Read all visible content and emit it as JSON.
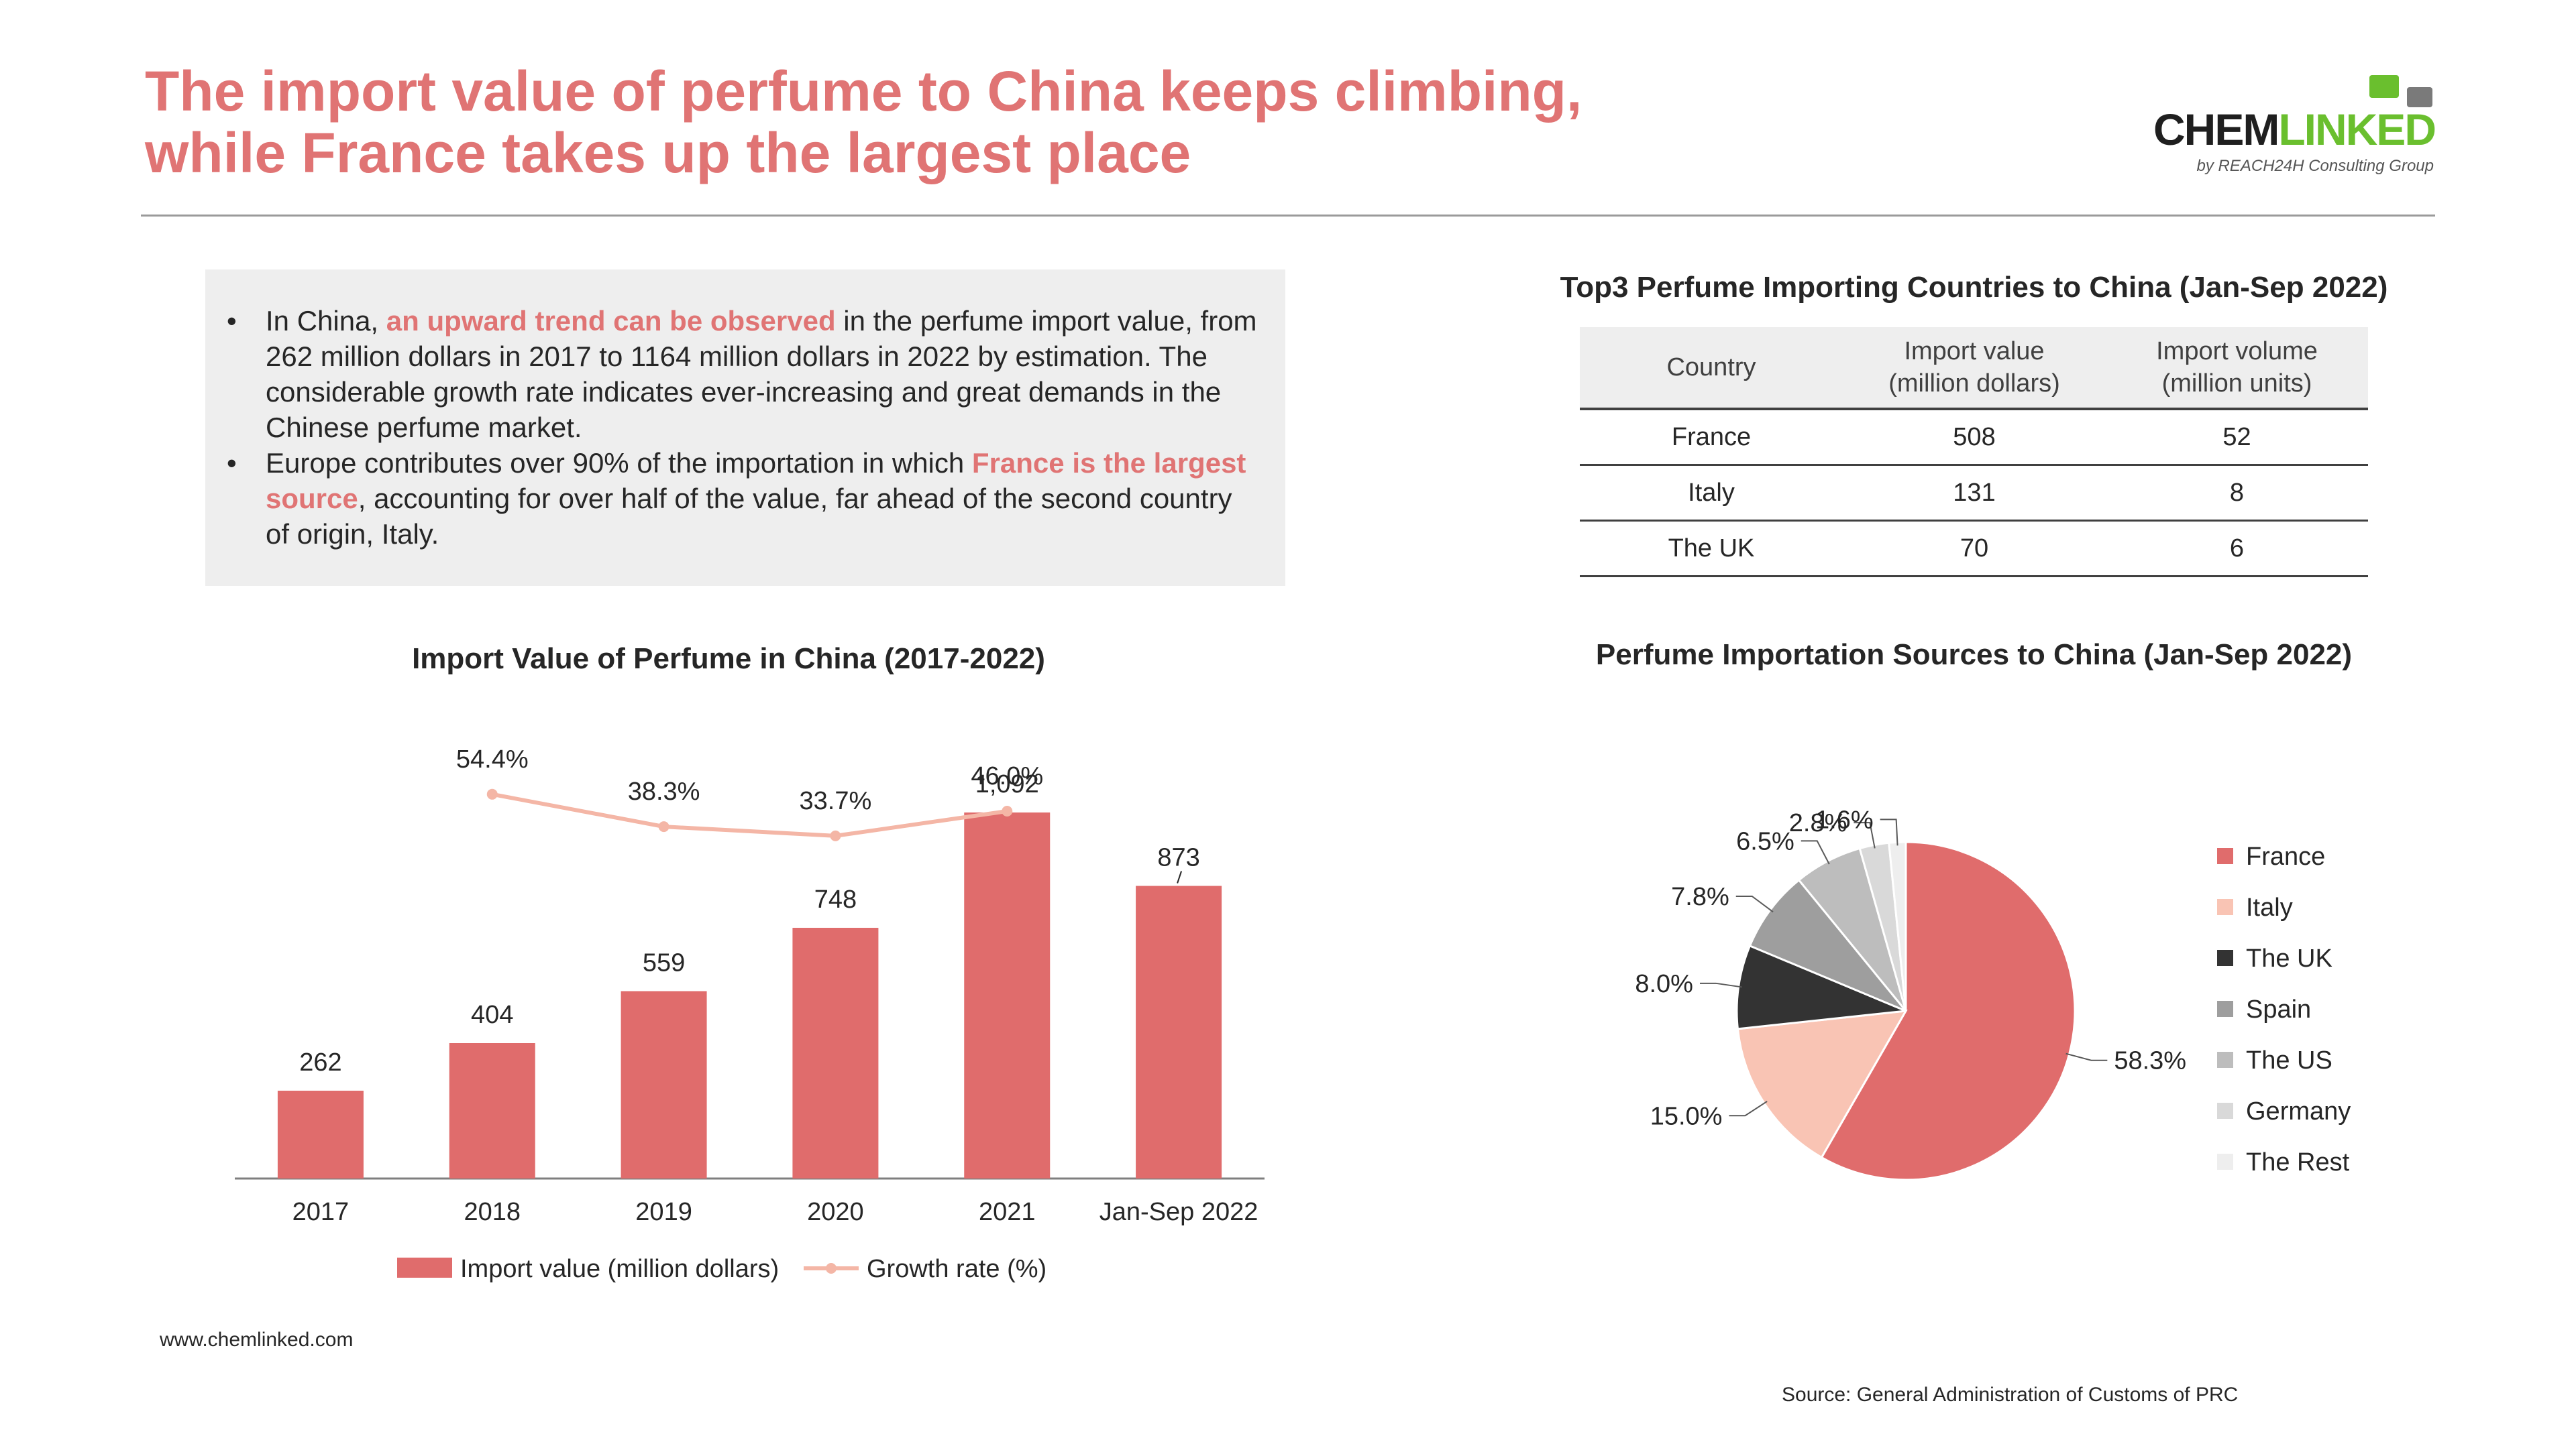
{
  "header": {
    "title_line1": "The import value of perfume to China keeps climbing,",
    "title_line2": "while France takes up the largest place"
  },
  "logo": {
    "main_dark": "CHEM",
    "main_green": "LINKED",
    "sub": "by REACH24H Consulting Group"
  },
  "summary": {
    "bullet1": {
      "pre": "In China, ",
      "highlight": "an upward trend can be observed",
      "post": " in the perfume import value, from 262 million dollars in 2017 to 1164 million dollars in 2022 by estimation. The considerable growth rate indicates ever-increasing and great demands in the Chinese perfume market."
    },
    "bullet2": {
      "pre": "Europe contributes over 90% of the importation in which ",
      "highlight": "France is the largest source",
      "post": ", accounting for over half of the value, far ahead of the second country of origin, Italy."
    },
    "bullet_marker": "•"
  },
  "table": {
    "title": "Top3 Perfume Importing Countries to China (Jan-Sep 2022)",
    "headers": {
      "country": "Country",
      "value_l1": "Import value",
      "value_l2": "(million dollars)",
      "volume_l1": "Import volume",
      "volume_l2": "(million units)"
    },
    "rows": [
      {
        "country": "France",
        "value": "508",
        "volume": "52"
      },
      {
        "country": "Italy",
        "value": "131",
        "volume": "8"
      },
      {
        "country": "The UK",
        "value": "70",
        "volume": "6"
      }
    ]
  },
  "chart_data": [
    {
      "type": "bar",
      "title": "Import Value of Perfume in China (2017-2022)",
      "categories": [
        "2017",
        "2018",
        "2019",
        "2020",
        "2021",
        "Jan-Sep 2022"
      ],
      "series": [
        {
          "name": "Import value (million dollars)",
          "values": [
            262,
            404,
            559,
            748,
            1092,
            873
          ],
          "labels": [
            "262",
            "404",
            "559",
            "748",
            "1,092",
            "873"
          ],
          "color": "#e06c6c"
        },
        {
          "name": "Growth rate (%)",
          "type": "line",
          "values": [
            null,
            54.4,
            38.3,
            33.7,
            46.0,
            null
          ],
          "labels": [
            "",
            "54.4%",
            "38.3%",
            "33.7%",
            "46.0%",
            ""
          ],
          "color": "#f4b6a6"
        }
      ],
      "legend": "bottom"
    },
    {
      "type": "pie",
      "title": "Perfume Importation Sources to China (Jan-Sep 2022)",
      "slices": [
        {
          "label": "France",
          "value": 58.3,
          "text": "58.3%",
          "color": "#e06c6c"
        },
        {
          "label": "Italy",
          "value": 15.0,
          "text": "15.0%",
          "color": "#f9c4b4"
        },
        {
          "label": "The UK",
          "value": 8.0,
          "text": "8.0%",
          "color": "#333333"
        },
        {
          "label": "Spain",
          "value": 7.8,
          "text": "7.8%",
          "color": "#9e9e9e"
        },
        {
          "label": "The US",
          "value": 6.5,
          "text": "6.5%",
          "color": "#bdbdbd"
        },
        {
          "label": "Germany",
          "value": 2.8,
          "text": "2.8%",
          "color": "#d9d9d9"
        },
        {
          "label": "The Rest",
          "value": 1.6,
          "text": "1.6%",
          "color": "#eeeeee"
        }
      ],
      "legend": "right"
    }
  ],
  "footer": {
    "website": "www.chemlinked.com",
    "source": "Source: General Administration of Customs of PRC"
  }
}
